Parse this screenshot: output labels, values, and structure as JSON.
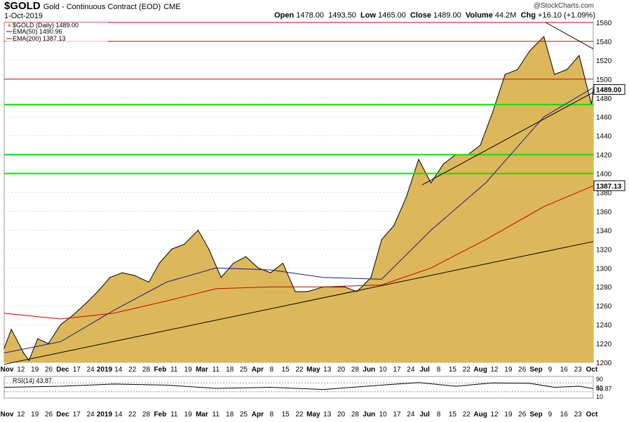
{
  "header": {
    "symbol": "$GOLD",
    "description": "Gold - Continuous Contract (EOD)",
    "exchange": "CME",
    "date": "1-Oct-2019",
    "watermark": "@StockCharts.com",
    "open_label": "Open",
    "open": "1478.00",
    "high": "1493.50",
    "low_label": "Low",
    "low": "1465.00",
    "close_label": "Close",
    "close": "1489.00",
    "volume_label": "Volume",
    "volume": "44.2M",
    "chg_label": "Chg",
    "chg": "+16.10 (+1.09%)"
  },
  "legend": {
    "price": "$GOLD (Daily) 1489.00",
    "ema50": "EMA(50) 1490.96",
    "ema200": "EMA(200) 1387.13",
    "rsi": "RSI(14) 43.87"
  },
  "colors": {
    "area_fill": "#dcb85a",
    "area_line": "#000000",
    "ema50": "#1a1a8a",
    "ema200": "#cc0000",
    "support_green": "#00e600",
    "resistance_red": "#cc0000",
    "grid": "#dddddd",
    "rsi_fill": "#5a9a5a"
  },
  "chart_data": {
    "type": "area",
    "ylim": [
      1200,
      1560
    ],
    "yticks": [
      1200,
      1220,
      1240,
      1260,
      1280,
      1300,
      1320,
      1340,
      1360,
      1380,
      1400,
      1420,
      1440,
      1460,
      1480,
      1500,
      1520,
      1540,
      1560
    ],
    "last_price_label": "1489.00",
    "ema200_label": "1387.13",
    "x_labels": [
      "Nov",
      "12",
      "19",
      "26",
      "Dec",
      "17",
      "24",
      "2019",
      "14",
      "22",
      "28",
      "Feb",
      "11",
      "19",
      "Mar",
      "11",
      "18",
      "25",
      "Apr",
      "8",
      "15",
      "22",
      "May",
      "13",
      "20",
      "28",
      "Jun",
      "10",
      "17",
      "24",
      "Jul",
      "8",
      "15",
      "22",
      "Aug",
      "12",
      "19",
      "26",
      "Sep",
      "9",
      "16",
      "23",
      "Oct"
    ],
    "price_series": {
      "name": "$GOLD (Daily)",
      "x": [
        "2018-11-01",
        "2018-11-05",
        "2018-11-12",
        "2018-11-15",
        "2018-11-20",
        "2018-11-26",
        "2018-12-03",
        "2018-12-10",
        "2018-12-17",
        "2018-12-24",
        "2018-12-31",
        "2019-01-07",
        "2019-01-14",
        "2019-01-22",
        "2019-01-28",
        "2019-02-04",
        "2019-02-11",
        "2019-02-19",
        "2019-02-25",
        "2019-03-04",
        "2019-03-11",
        "2019-03-18",
        "2019-03-25",
        "2019-04-01",
        "2019-04-08",
        "2019-04-15",
        "2019-04-22",
        "2019-05-01",
        "2019-05-13",
        "2019-05-20",
        "2019-05-28",
        "2019-06-03",
        "2019-06-10",
        "2019-06-17",
        "2019-06-24",
        "2019-07-01",
        "2019-07-08",
        "2019-07-15",
        "2019-07-22",
        "2019-07-29",
        "2019-08-05",
        "2019-08-12",
        "2019-08-19",
        "2019-08-26",
        "2019-09-03",
        "2019-09-09",
        "2019-09-16",
        "2019-09-23",
        "2019-09-30",
        "2019-10-01"
      ],
      "values": [
        1215,
        1235,
        1210,
        1202,
        1225,
        1220,
        1240,
        1250,
        1262,
        1275,
        1290,
        1295,
        1292,
        1285,
        1305,
        1320,
        1325,
        1340,
        1320,
        1290,
        1305,
        1312,
        1300,
        1295,
        1305,
        1275,
        1275,
        1280,
        1280,
        1275,
        1290,
        1330,
        1345,
        1375,
        1415,
        1390,
        1410,
        1420,
        1420,
        1430,
        1465,
        1505,
        1510,
        1530,
        1545,
        1505,
        1510,
        1525,
        1473,
        1489
      ]
    },
    "ema50_series": {
      "name": "EMA(50)",
      "x": [
        "2018-11-01",
        "2018-12-03",
        "2019-01-02",
        "2019-02-01",
        "2019-03-01",
        "2019-04-01",
        "2019-05-01",
        "2019-06-03",
        "2019-07-01",
        "2019-08-01",
        "2019-09-03",
        "2019-10-01"
      ],
      "values": [
        1210,
        1222,
        1255,
        1285,
        1300,
        1298,
        1290,
        1288,
        1340,
        1390,
        1460,
        1491
      ]
    },
    "ema200_series": {
      "name": "EMA(200)",
      "x": [
        "2018-11-01",
        "2018-12-03",
        "2019-01-02",
        "2019-02-01",
        "2019-03-01",
        "2019-04-01",
        "2019-05-01",
        "2019-06-03",
        "2019-07-01",
        "2019-08-01",
        "2019-09-03",
        "2019-10-01"
      ],
      "values": [
        1252,
        1246,
        1252,
        1265,
        1278,
        1280,
        1280,
        1282,
        1300,
        1330,
        1365,
        1387
      ]
    },
    "horizontal_lines": [
      {
        "value": 1560,
        "color": "red"
      },
      {
        "value": 1540,
        "color": "red"
      },
      {
        "value": 1500,
        "color": "red"
      },
      {
        "value": 1473,
        "color": "green"
      },
      {
        "value": 1420,
        "color": "green"
      },
      {
        "value": 1400,
        "color": "green"
      }
    ],
    "trendlines": [
      {
        "from": [
          "2018-11-01",
          1198
        ],
        "to": [
          "2019-10-01",
          1328
        ]
      },
      {
        "from": [
          "2019-06-26",
          1388
        ],
        "to": [
          "2019-10-01",
          1486
        ]
      },
      {
        "from": [
          "2019-09-04",
          1560
        ],
        "to": [
          "2019-10-01",
          1532
        ]
      }
    ],
    "rsi": {
      "name": "RSI(14)",
      "ylim": [
        0,
        100
      ],
      "yticks": [
        10,
        50,
        90
      ],
      "current_label": "43.87",
      "x": [
        "2018-11-01",
        "2018-12-03",
        "2019-01-02",
        "2019-02-01",
        "2019-03-01",
        "2019-04-01",
        "2019-05-01",
        "2019-06-03",
        "2019-06-24",
        "2019-07-15",
        "2019-08-05",
        "2019-08-26",
        "2019-09-09",
        "2019-09-23",
        "2019-10-01"
      ],
      "values": [
        50,
        55,
        65,
        60,
        45,
        50,
        40,
        60,
        72,
        55,
        70,
        68,
        50,
        55,
        44
      ]
    }
  }
}
